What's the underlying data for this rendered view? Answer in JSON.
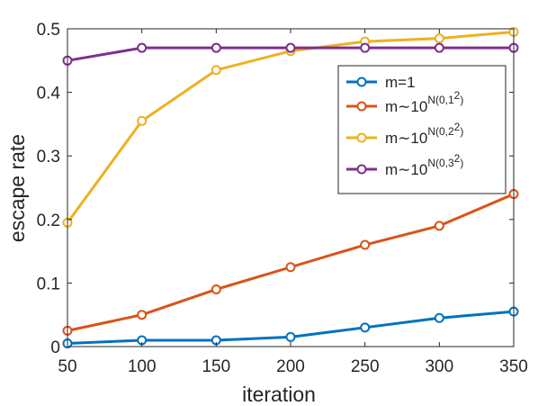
{
  "chart_data": {
    "type": "line",
    "title": "",
    "xlabel": "iteration",
    "ylabel": "escape rate",
    "x": [
      50,
      100,
      150,
      200,
      250,
      300,
      350
    ],
    "xlim": [
      50,
      350
    ],
    "ylim": [
      0,
      0.5
    ],
    "xticks": [
      "50",
      "100",
      "150",
      "200",
      "250",
      "300",
      "350"
    ],
    "yticks": [
      "0",
      "0.1",
      "0.2",
      "0.3",
      "0.4",
      "0.5"
    ],
    "grid": false,
    "legend_position": "top-right",
    "series": [
      {
        "name": "m=1",
        "legend_base": "m=1",
        "legend_sup": "",
        "legend_tail": "",
        "color": "#0072BD",
        "values": [
          0.005,
          0.01,
          0.01,
          0.015,
          0.03,
          0.045,
          0.055
        ]
      },
      {
        "name": "m~10^{N(0,1^2)}",
        "legend_base": "m∼10",
        "legend_sup": "N(0,1",
        "legend_sup2": "2",
        "legend_tail": ")",
        "color": "#D95319",
        "values": [
          0.025,
          0.05,
          0.09,
          0.125,
          0.16,
          0.19,
          0.24
        ]
      },
      {
        "name": "m~10^{N(0,2^2)}",
        "legend_base": "m∼10",
        "legend_sup": "N(0,2",
        "legend_sup2": "2",
        "legend_tail": ")",
        "color": "#EDB120",
        "values": [
          0.195,
          0.355,
          0.435,
          0.465,
          0.48,
          0.485,
          0.495
        ]
      },
      {
        "name": "m~10^{N(0,3^2)}",
        "legend_base": "m∼10",
        "legend_sup": "N(0,3",
        "legend_sup2": "2",
        "legend_tail": ")",
        "color": "#7E2F8E",
        "values": [
          0.45,
          0.47,
          0.47,
          0.47,
          0.47,
          0.47,
          0.47
        ]
      }
    ]
  }
}
